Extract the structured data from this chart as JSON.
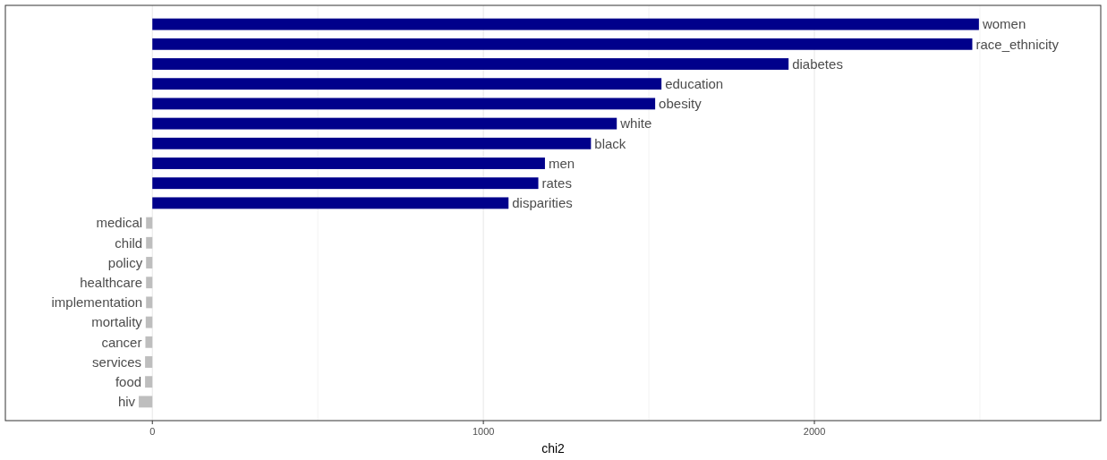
{
  "chart_data": {
    "type": "bar",
    "orientation": "horizontal",
    "xlabel": "chi2",
    "categories": [
      "women",
      "race_ethnicity",
      "diabetes",
      "education",
      "obesity",
      "white",
      "black",
      "men",
      "rates",
      "disparities",
      "medical",
      "child",
      "policy",
      "healthcare",
      "implementation",
      "mortality",
      "cancer",
      "services",
      "food",
      "hiv"
    ],
    "values": [
      2497,
      2477,
      1922,
      1538,
      1519,
      1403,
      1325,
      1186,
      1166,
      1076,
      -19,
      -19,
      -19,
      -19,
      -19,
      -20,
      -21,
      -22,
      -22,
      -41
    ],
    "colors": [
      "#00008b",
      "#00008b",
      "#00008b",
      "#00008b",
      "#00008b",
      "#00008b",
      "#00008b",
      "#00008b",
      "#00008b",
      "#00008b",
      "#bebebe",
      "#bebebe",
      "#bebebe",
      "#bebebe",
      "#bebebe",
      "#bebebe",
      "#bebebe",
      "#bebebe",
      "#bebebe",
      "#bebebe"
    ],
    "xlim": [
      -444,
      2865
    ],
    "xticks": [
      0,
      1000,
      2000
    ],
    "grid": "x"
  }
}
